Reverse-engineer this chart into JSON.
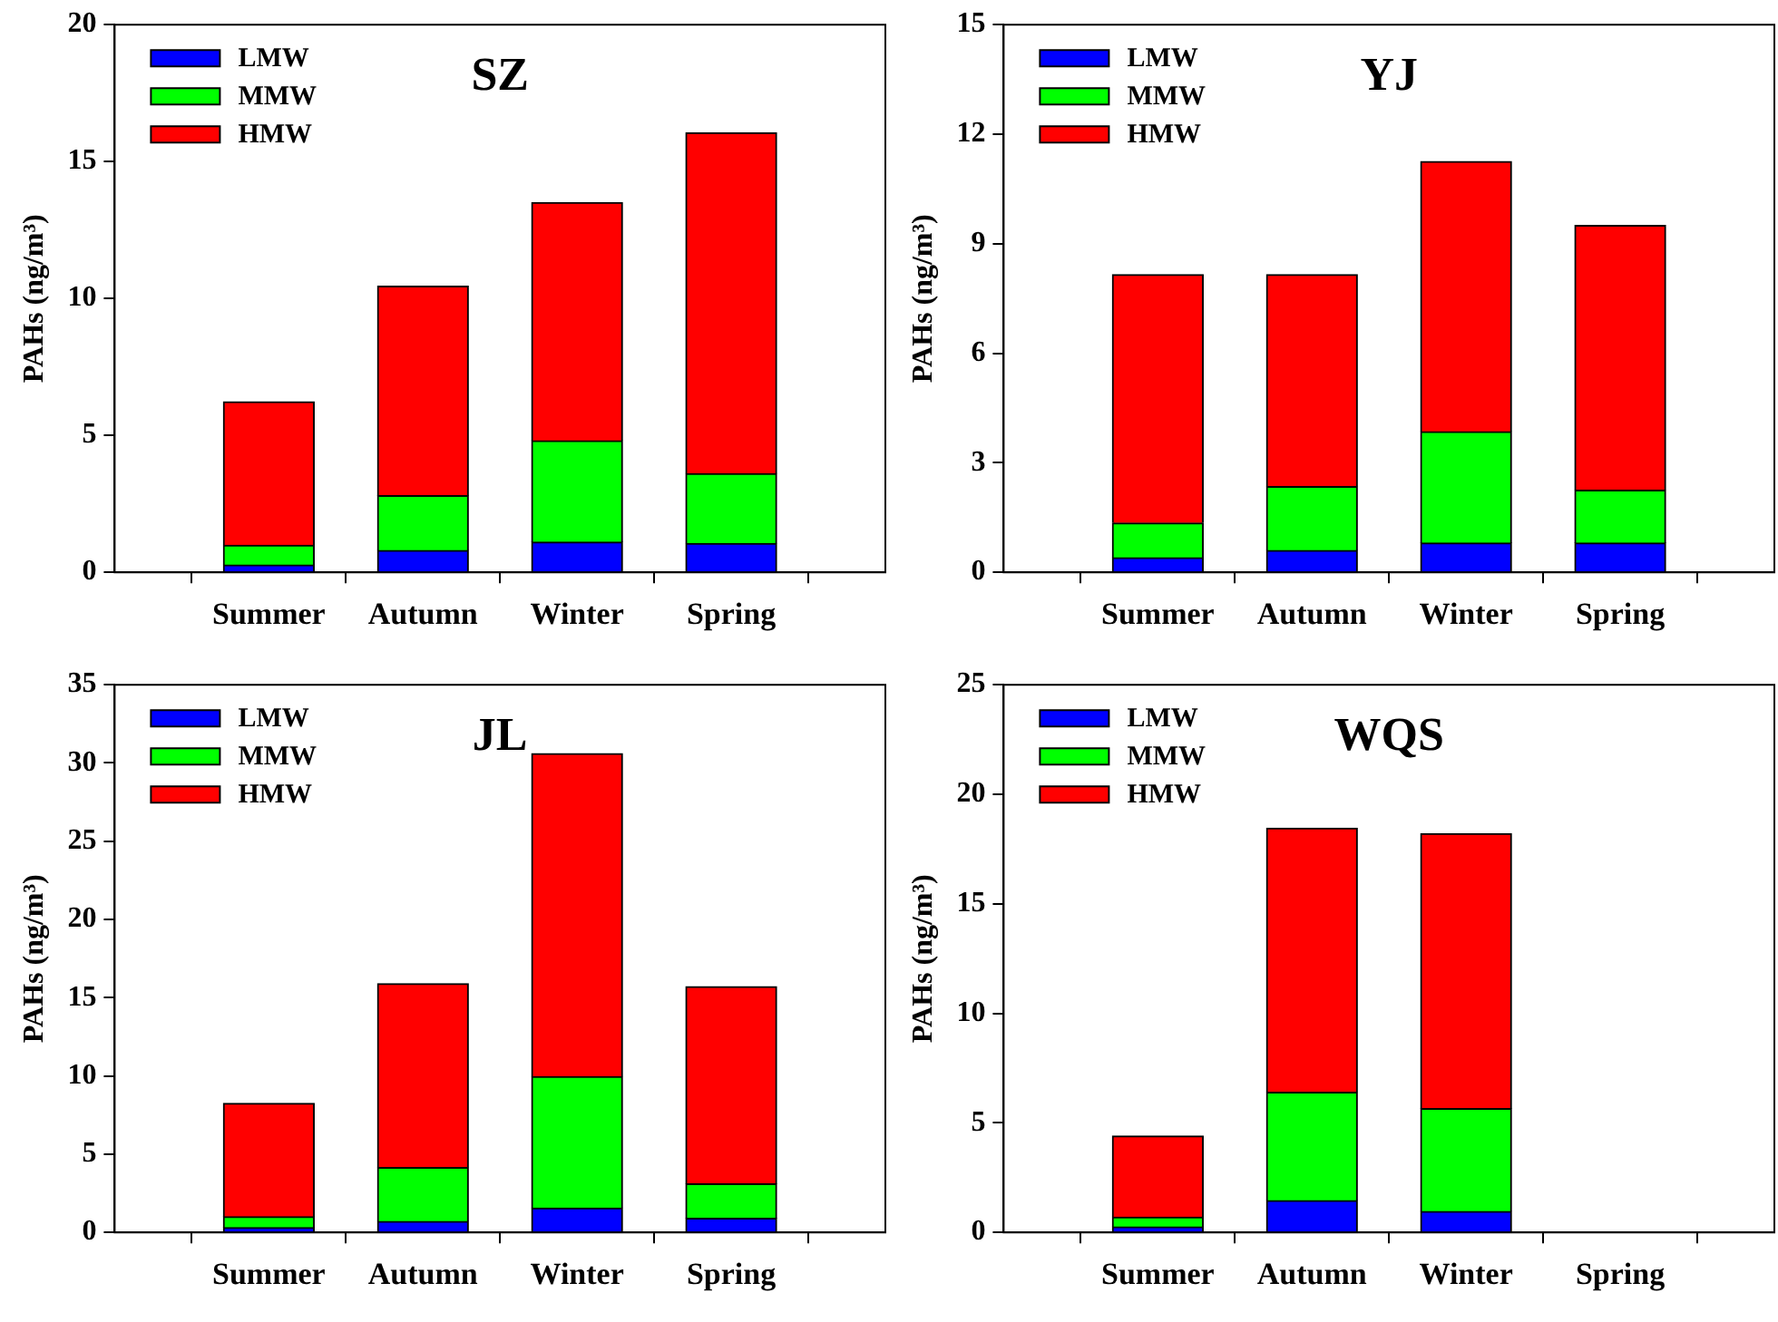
{
  "chart_data": [
    {
      "type": "bar",
      "title": "SZ",
      "ylabel": "PAHs (ng/m³)",
      "categories": [
        "Summer",
        "Autumn",
        "Winter",
        "Spring"
      ],
      "stacked": true,
      "legend": "top left",
      "grid": false,
      "ylim": [
        0,
        20
      ],
      "yticks": [
        0,
        5,
        10,
        15,
        20
      ],
      "series": [
        {
          "name": "LMW",
          "color": "#0000ff",
          "values": [
            0.27,
            0.8,
            1.1,
            1.05
          ]
        },
        {
          "name": "MMW",
          "color": "#00ff00",
          "values": [
            0.72,
            2.0,
            3.7,
            2.55
          ]
        },
        {
          "name": "HMW",
          "color": "#ff0000",
          "values": [
            5.24,
            7.65,
            8.7,
            12.45
          ]
        }
      ]
    },
    {
      "type": "bar",
      "title": "YJ",
      "ylabel": "PAHs (ng/m³)",
      "categories": [
        "Summer",
        "Autumn",
        "Winter",
        "Spring"
      ],
      "stacked": true,
      "legend": "top left",
      "grid": false,
      "ylim": [
        0,
        15
      ],
      "yticks": [
        0,
        3,
        6,
        9,
        12,
        15
      ],
      "series": [
        {
          "name": "LMW",
          "color": "#0000ff",
          "values": [
            0.4,
            0.6,
            0.8,
            0.8
          ]
        },
        {
          "name": "MMW",
          "color": "#00ff00",
          "values": [
            0.95,
            1.75,
            3.05,
            1.45
          ]
        },
        {
          "name": "HMW",
          "color": "#ff0000",
          "values": [
            6.8,
            5.8,
            7.4,
            7.25
          ]
        }
      ]
    },
    {
      "type": "bar",
      "title": "JL",
      "ylabel": "PAHs (ng/m³)",
      "categories": [
        "Summer",
        "Autumn",
        "Winter",
        "Spring"
      ],
      "stacked": true,
      "legend": "top left",
      "grid": false,
      "ylim": [
        0,
        35
      ],
      "yticks": [
        0,
        5,
        10,
        15,
        20,
        25,
        30,
        35
      ],
      "series": [
        {
          "name": "LMW",
          "color": "#0000ff",
          "values": [
            0.3,
            0.7,
            1.55,
            0.9
          ]
        },
        {
          "name": "MMW",
          "color": "#00ff00",
          "values": [
            0.7,
            3.45,
            8.4,
            2.2
          ]
        },
        {
          "name": "HMW",
          "color": "#ff0000",
          "values": [
            7.25,
            11.75,
            20.65,
            12.6
          ]
        }
      ]
    },
    {
      "type": "bar",
      "title": "WQS",
      "ylabel": "PAHs (ng/m³)",
      "categories": [
        "Summer",
        "Autumn",
        "Winter",
        "Spring"
      ],
      "stacked": true,
      "legend": "top left",
      "grid": false,
      "ylim": [
        0,
        25
      ],
      "yticks": [
        0,
        5,
        10,
        15,
        20,
        25
      ],
      "series": [
        {
          "name": "LMW",
          "color": "#0000ff",
          "values": [
            0.25,
            1.45,
            0.95,
            null
          ]
        },
        {
          "name": "MMW",
          "color": "#00ff00",
          "values": [
            0.45,
            4.95,
            4.7,
            null
          ]
        },
        {
          "name": "HMW",
          "color": "#ff0000",
          "values": [
            3.7,
            12.05,
            12.55,
            null
          ]
        }
      ]
    }
  ]
}
